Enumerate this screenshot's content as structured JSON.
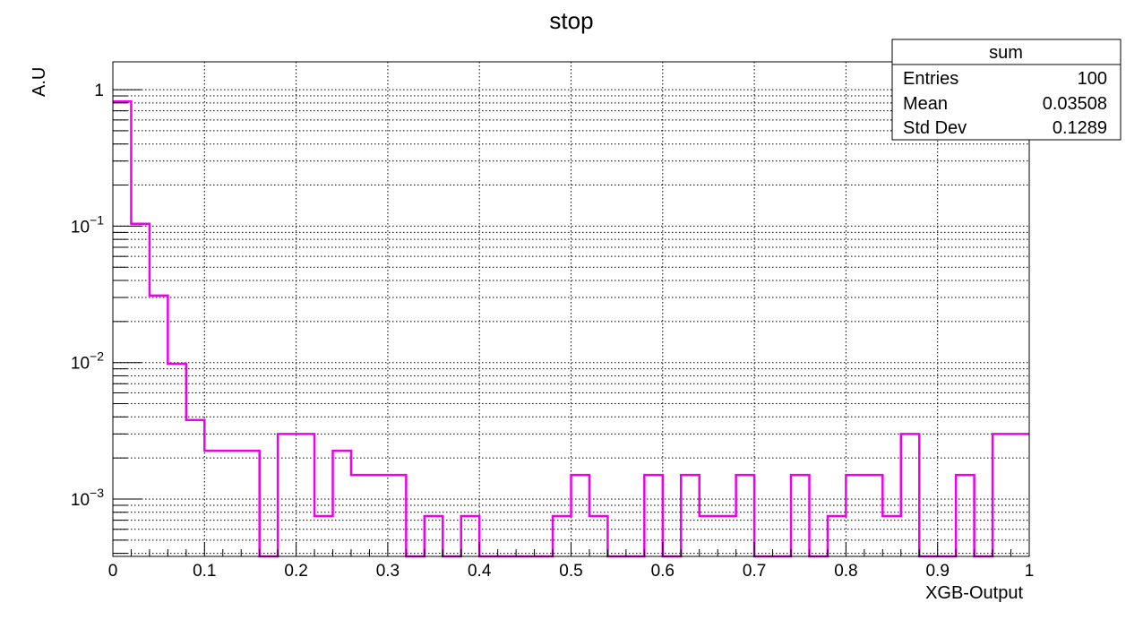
{
  "chart_data": {
    "type": "histogram",
    "title": "stop",
    "xlabel": "XGB-Output",
    "ylabel": "A.U",
    "xlim": [
      0,
      1
    ],
    "ylim": [
      0.00038,
      1.6
    ],
    "yscale": "log",
    "grid": true,
    "line_color": "#ee00ee",
    "bin_edges": [
      0,
      0.02,
      0.04,
      0.06,
      0.08,
      0.1,
      0.12,
      0.14,
      0.16,
      0.18,
      0.2,
      0.22,
      0.24,
      0.26,
      0.28,
      0.3,
      0.32,
      0.34,
      0.36,
      0.38,
      0.4,
      0.42,
      0.44,
      0.46,
      0.48,
      0.5,
      0.52,
      0.54,
      0.56,
      0.58,
      0.6,
      0.62,
      0.64,
      0.66,
      0.68,
      0.7,
      0.72,
      0.74,
      0.76,
      0.78,
      0.8,
      0.82,
      0.84,
      0.86,
      0.88,
      0.9,
      0.92,
      0.94,
      0.96,
      0.98,
      1.0
    ],
    "values": [
      0.82,
      0.104,
      0.031,
      0.0098,
      0.0038,
      0.00226,
      0.00226,
      0.00226,
      0.0,
      0.003,
      0.003,
      0.00075,
      0.00226,
      0.0015,
      0.0015,
      0.0015,
      0.0,
      0.00075,
      0.0,
      0.00075,
      0.0,
      0.0,
      0.0,
      0.0,
      0.00075,
      0.0015,
      0.00075,
      0.0,
      0.0,
      0.0015,
      0.0,
      0.0015,
      0.00075,
      0.00075,
      0.0015,
      0.0,
      0.0,
      0.0015,
      0.0,
      0.00075,
      0.0015,
      0.0015,
      0.00075,
      0.003,
      0.0,
      0.0,
      0.0015,
      0.0,
      0.003,
      0.003
    ],
    "x_ticks": [
      {
        "value": 0,
        "label": "0"
      },
      {
        "value": 0.1,
        "label": "0.1"
      },
      {
        "value": 0.2,
        "label": "0.2"
      },
      {
        "value": 0.3,
        "label": "0.3"
      },
      {
        "value": 0.4,
        "label": "0.4"
      },
      {
        "value": 0.5,
        "label": "0.5"
      },
      {
        "value": 0.6,
        "label": "0.6"
      },
      {
        "value": 0.7,
        "label": "0.7"
      },
      {
        "value": 0.8,
        "label": "0.8"
      },
      {
        "value": 0.9,
        "label": "0.9"
      },
      {
        "value": 1,
        "label": "1"
      }
    ],
    "y_ticks": [
      {
        "value": 1,
        "base": "1",
        "exp": ""
      },
      {
        "value": 0.1,
        "base": "10",
        "exp": "−1"
      },
      {
        "value": 0.01,
        "base": "10",
        "exp": "−2"
      },
      {
        "value": 0.001,
        "base": "10",
        "exp": "−3"
      }
    ],
    "stats_box": {
      "name": "sum",
      "rows": [
        {
          "label": "Entries",
          "value": "100"
        },
        {
          "label": "Mean",
          "value": "0.03508"
        },
        {
          "label": "Std Dev",
          "value": "0.1289"
        }
      ]
    }
  }
}
